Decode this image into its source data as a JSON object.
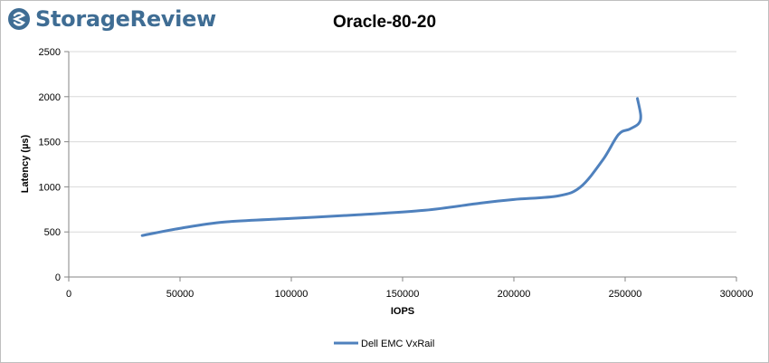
{
  "brand": {
    "name": "StorageReview"
  },
  "colors": {
    "series": "#4f81bd",
    "grid": "#d9d9d9",
    "axis": "#868686",
    "logo": "#3f6d94"
  },
  "chart_data": {
    "type": "line",
    "title": "Oracle-80-20",
    "xlabel": "IOPS",
    "ylabel": "Latency (µs)",
    "xlim": [
      0,
      300000
    ],
    "ylim": [
      0,
      2500
    ],
    "xticks": [
      0,
      50000,
      100000,
      150000,
      200000,
      250000,
      300000
    ],
    "yticks": [
      0,
      500,
      1000,
      1500,
      2000,
      2500
    ],
    "xtick_labels": [
      "0",
      "50000",
      "100000",
      "150000",
      "200000",
      "250000",
      "300000"
    ],
    "ytick_labels": [
      "0",
      "500",
      "1000",
      "1500",
      "2000",
      "2500"
    ],
    "grid": true,
    "legend_position": "bottom",
    "series": [
      {
        "name": "Dell EMC VxRail",
        "x": [
          33000,
          50000,
          70000,
          100000,
          130000,
          160000,
          185000,
          200000,
          220000,
          230000,
          240000,
          247000,
          252000,
          256000,
          257000,
          255500
        ],
        "y": [
          460,
          540,
          610,
          650,
          690,
          740,
          820,
          860,
          900,
          1000,
          1300,
          1580,
          1640,
          1700,
          1790,
          1980
        ]
      }
    ]
  }
}
